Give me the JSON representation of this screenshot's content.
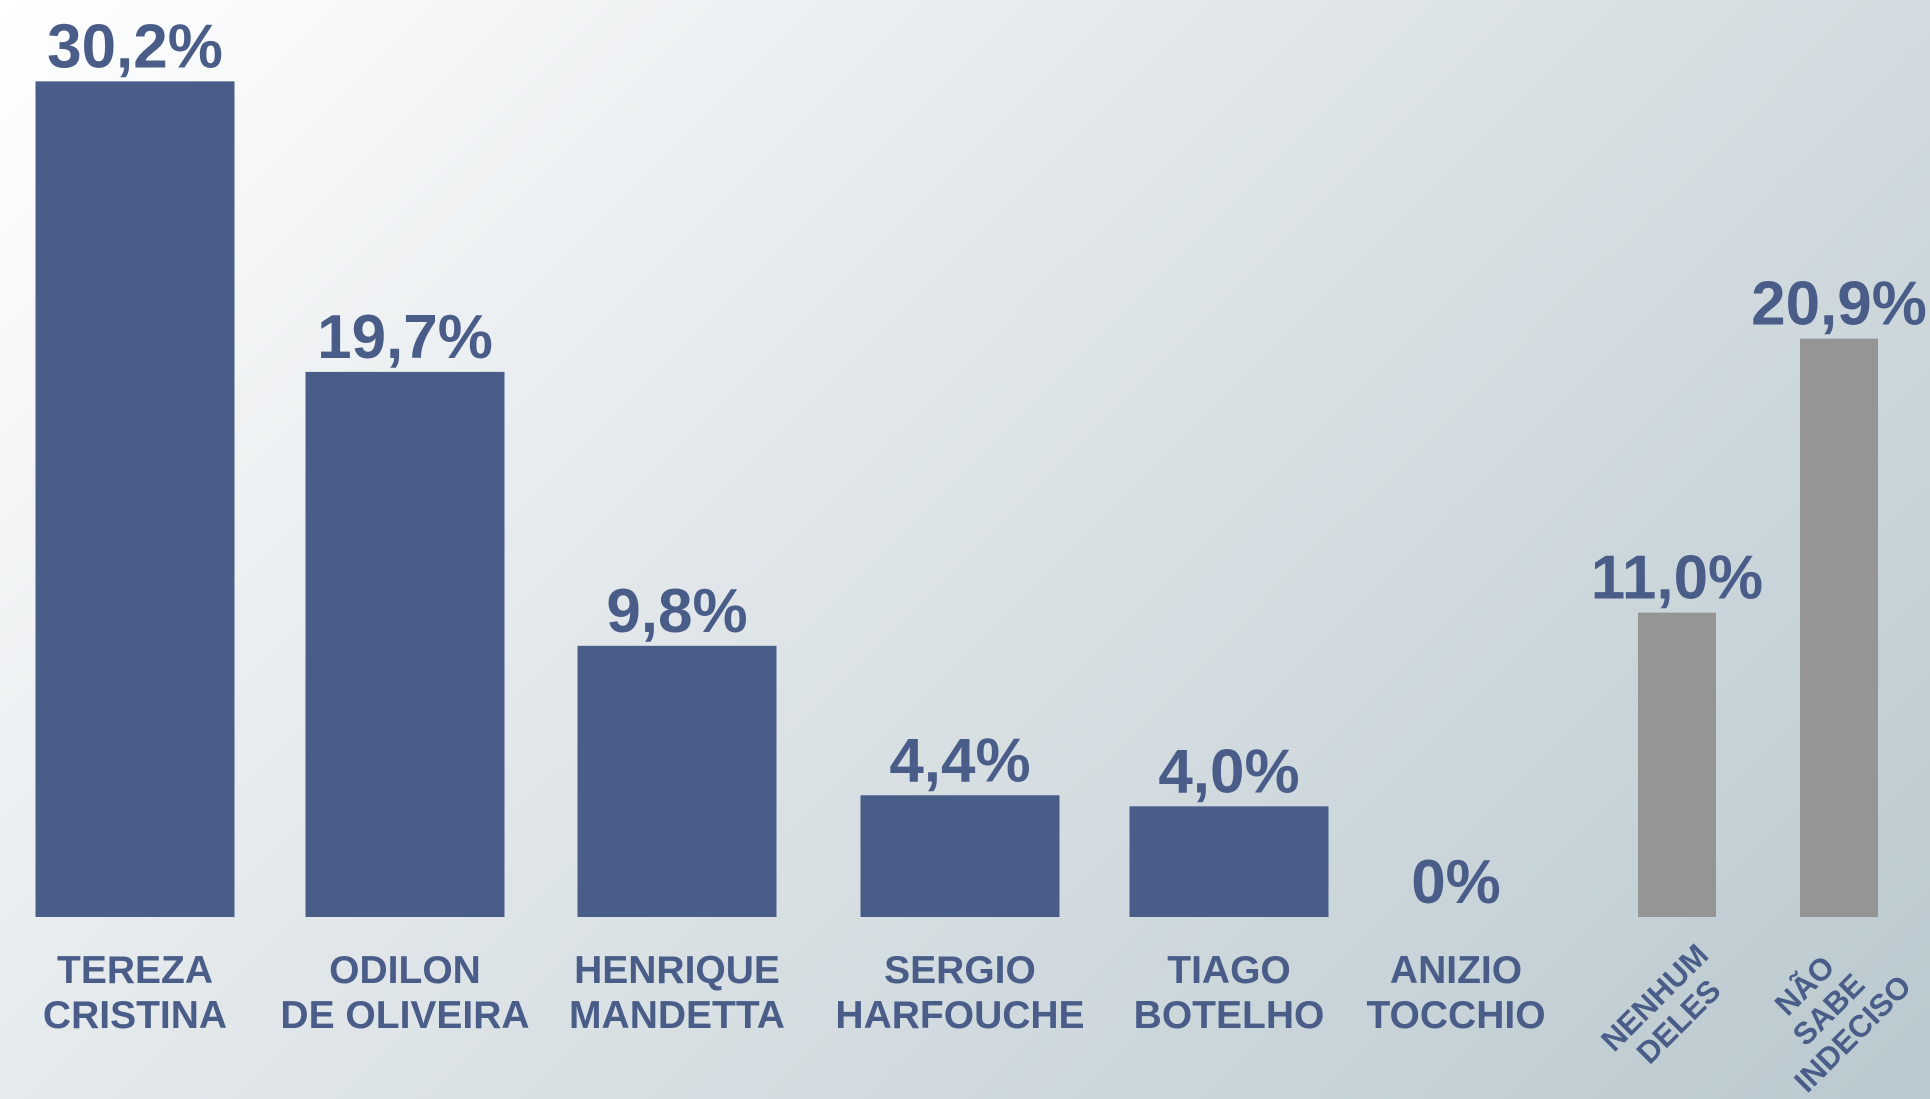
{
  "chart_data": {
    "type": "bar",
    "categories": [
      "TEREZA\nCRISTINA",
      "ODILON\nDE OLIVEIRA",
      "HENRIQUE\nMANDETTA",
      "SERGIO\nHARFOUCHE",
      "TIAGO\nBOTELHO",
      "ANIZIO\nTOCCHIO",
      "NENHUM\nDELES",
      "NÃO SABE\nINDECISO"
    ],
    "values": [
      30.2,
      19.7,
      9.8,
      4.4,
      4.0,
      0,
      11.0,
      20.9
    ],
    "value_labels": [
      "30,2%",
      "19,7%",
      "9,8%",
      "4,4%",
      "4,0%",
      "0%",
      "11,0%",
      "20,9%"
    ],
    "colors": [
      "#4a5d89",
      "#4a5d89",
      "#4a5d89",
      "#4a5d89",
      "#4a5d89",
      "#4a5d89",
      "#959595",
      "#959595"
    ]
  }
}
